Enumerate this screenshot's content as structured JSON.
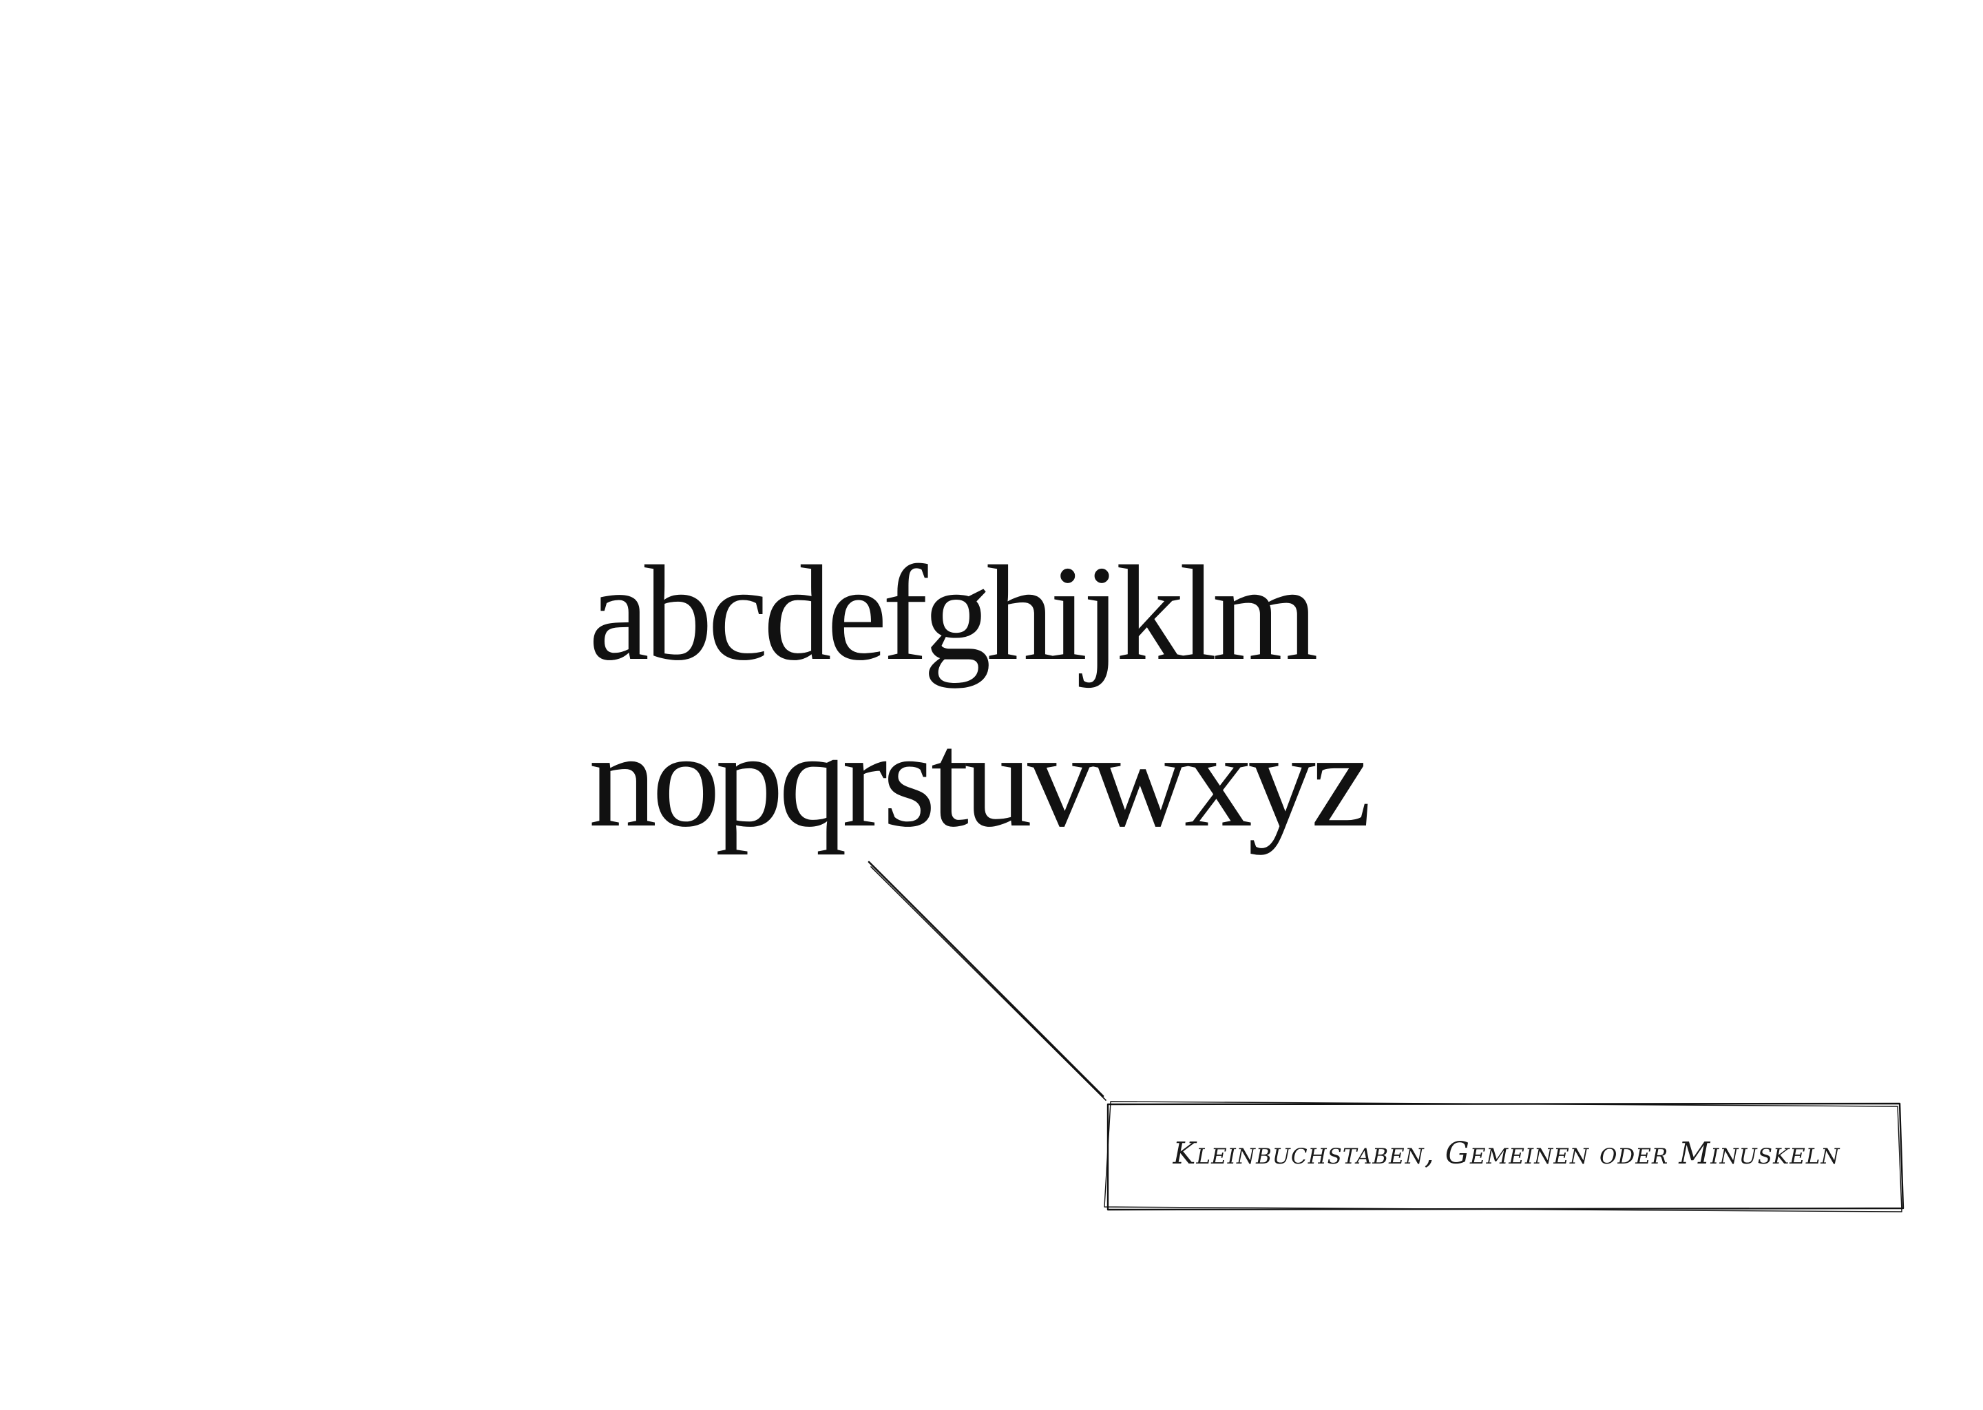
{
  "alphabet": {
    "line1": "abcdefghijklm",
    "line2": "nopqrstuvwxyz"
  },
  "annotation": {
    "label": "Kleinbuchstaben, Gemeinen oder Minuskeln"
  }
}
